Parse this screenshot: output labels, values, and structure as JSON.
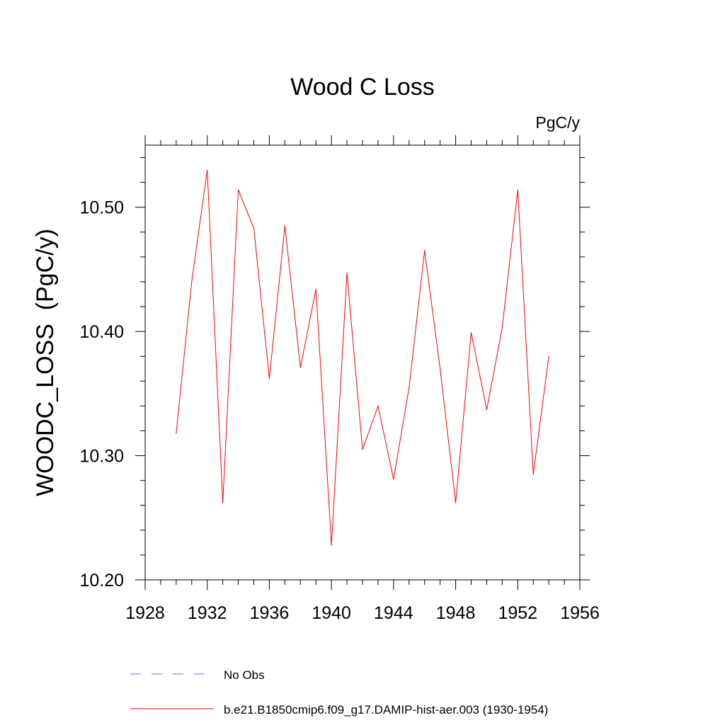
{
  "chart_data": {
    "type": "line",
    "title": "Wood C Loss",
    "units_label": "PgC/y",
    "ylabel": "WOODC_LOSS  (PgC/y)",
    "xlabel": "",
    "xlim": [
      1928,
      1956
    ],
    "ylim": [
      10.2,
      10.55
    ],
    "x_ticks": [
      1928,
      1932,
      1936,
      1940,
      1944,
      1948,
      1952,
      1956
    ],
    "x_tick_labels": [
      "1928",
      "1932",
      "1936",
      "1940",
      "1944",
      "1948",
      "1952",
      "1956"
    ],
    "y_ticks": [
      10.2,
      10.3,
      10.4,
      10.5
    ],
    "y_tick_labels": [
      "10.20",
      "10.30",
      "10.40",
      "10.50"
    ],
    "grid": false,
    "legend_position": "bottom",
    "series": [
      {
        "name": "b.e21.B1850cmip6.f09_g17.DAMIP-hist-aer.003 (1930-1954)",
        "color": "#ff0000",
        "style": "solid",
        "x": [
          1930,
          1931,
          1932,
          1933,
          1934,
          1935,
          1936,
          1937,
          1938,
          1939,
          1940,
          1941,
          1942,
          1943,
          1944,
          1945,
          1946,
          1947,
          1948,
          1949,
          1950,
          1951,
          1952,
          1953,
          1954
        ],
        "y": [
          10.318,
          10.44,
          10.53,
          10.262,
          10.514,
          10.483,
          10.362,
          10.485,
          10.371,
          10.434,
          10.228,
          10.447,
          10.305,
          10.34,
          10.281,
          10.355,
          10.465,
          10.37,
          10.262,
          10.399,
          10.337,
          10.403,
          10.514,
          10.285,
          10.38
        ]
      }
    ],
    "legend": [
      {
        "label": "No Obs",
        "color": "#7b68ee",
        "style": "dashed"
      },
      {
        "label": "b.e21.B1850cmip6.f09_g17.DAMIP-hist-aer.003 (1930-1954)",
        "color": "#ff0000",
        "style": "solid"
      }
    ]
  }
}
